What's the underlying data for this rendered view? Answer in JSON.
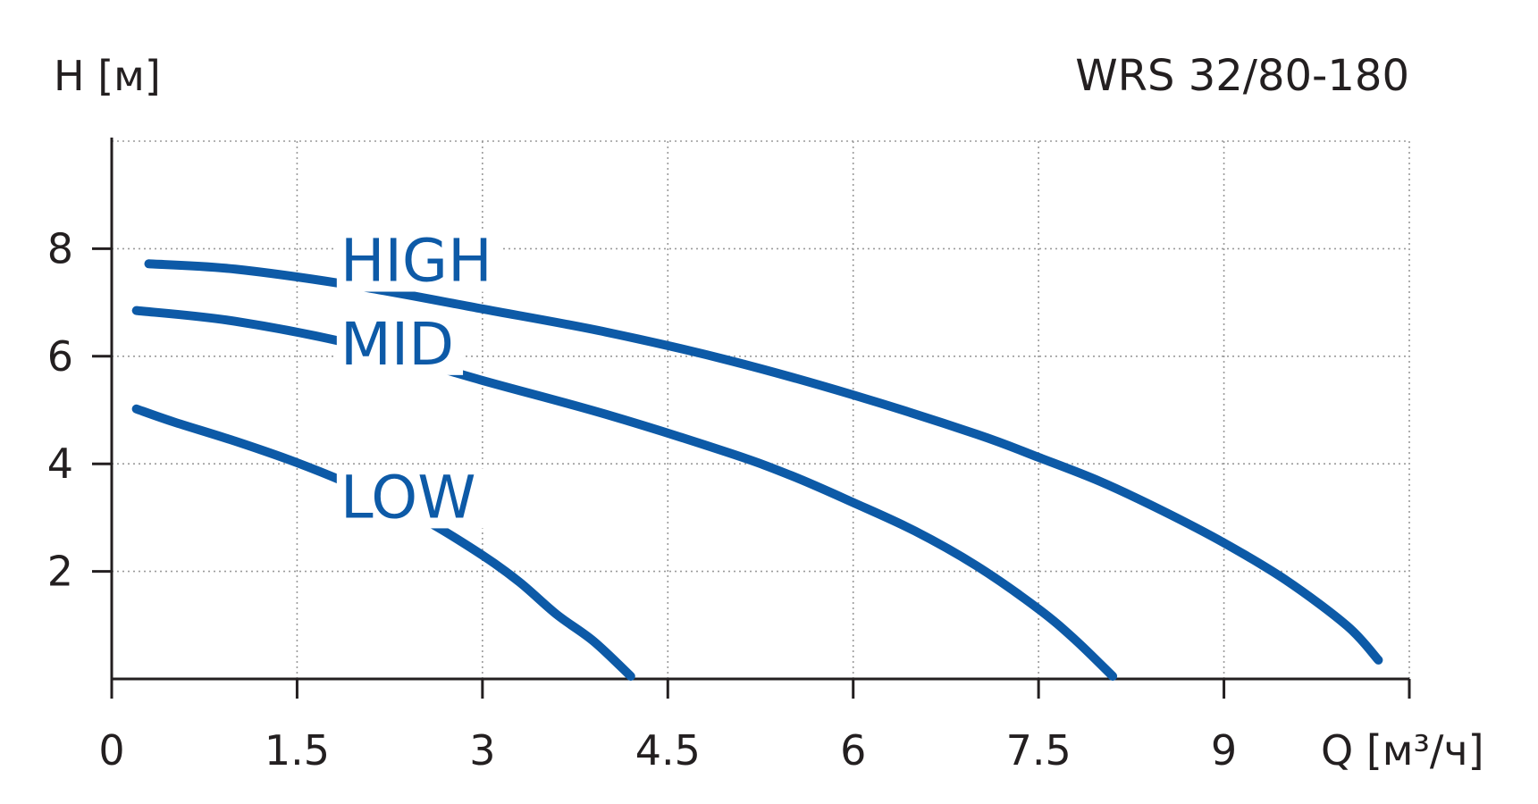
{
  "chart_data": {
    "type": "line",
    "title": "WRS 32/80-180",
    "xlabel": "Q [м³/ч]",
    "ylabel": "H [м]",
    "xlim": [
      0,
      10.5
    ],
    "ylim": [
      0,
      10
    ],
    "x_ticks": [
      0,
      1.5,
      3,
      4.5,
      6,
      7.5,
      9
    ],
    "x_tick_labels": [
      "0",
      "1.5",
      "3",
      "4.5",
      "6",
      "7.5",
      "9"
    ],
    "y_ticks": [
      2,
      4,
      6,
      8
    ],
    "y_tick_labels": [
      "2",
      "4",
      "6",
      "8"
    ],
    "grid": true,
    "series_color": "#0d5aa7",
    "series": [
      {
        "name": "HIGH",
        "label_at": [
          1.85,
          7.4
        ],
        "x": [
          0.3,
          1.0,
          2.0,
          3.0,
          4.0,
          5.0,
          6.0,
          7.0,
          7.5,
          8.0,
          8.5,
          9.0,
          9.5,
          10.0,
          10.25
        ],
        "values": [
          7.72,
          7.62,
          7.3,
          6.88,
          6.45,
          5.92,
          5.28,
          4.55,
          4.12,
          3.67,
          3.13,
          2.53,
          1.84,
          0.98,
          0.35
        ]
      },
      {
        "name": "MID",
        "label_at": [
          1.85,
          5.85
        ],
        "x": [
          0.2,
          1.0,
          2.0,
          3.0,
          4.0,
          5.0,
          5.5,
          6.0,
          6.5,
          7.0,
          7.5,
          7.8,
          8.1
        ],
        "values": [
          6.85,
          6.65,
          6.2,
          5.55,
          4.92,
          4.2,
          3.78,
          3.28,
          2.75,
          2.1,
          1.3,
          0.72,
          0.05
        ]
      },
      {
        "name": "LOW",
        "label_at": [
          1.85,
          3.0
        ],
        "x": [
          0.2,
          0.5,
          1.0,
          1.5,
          2.0,
          2.5,
          3.0,
          3.3,
          3.6,
          3.9,
          4.2
        ],
        "values": [
          5.02,
          4.78,
          4.42,
          4.02,
          3.55,
          3.0,
          2.3,
          1.8,
          1.2,
          0.7,
          0.05
        ]
      }
    ]
  }
}
